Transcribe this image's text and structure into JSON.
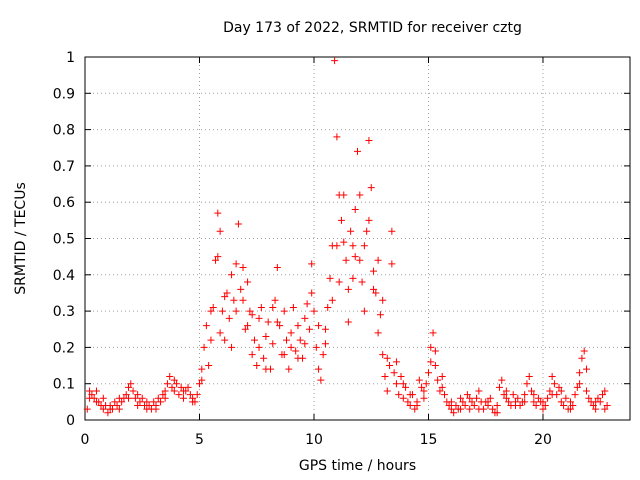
{
  "chart_data": {
    "type": "scatter",
    "title": "Day 173 of 2022, SRMTID for receiver cztg",
    "xlabel": "GPS time / hours",
    "ylabel": "SRMTID / TECUs",
    "xlim": [
      0,
      23.8
    ],
    "ylim": [
      0,
      1
    ],
    "xticks": [
      0,
      5,
      10,
      15,
      20
    ],
    "xtick_labels": [
      "0",
      "5",
      "10",
      "15",
      "20"
    ],
    "yticks": [
      0,
      0.1,
      0.2,
      0.3,
      0.4,
      0.5,
      0.6,
      0.7,
      0.8,
      0.9,
      1
    ],
    "ytick_labels": [
      "0",
      "0.1",
      "0.2",
      "0.3",
      "0.4",
      "0.5",
      "0.6",
      "0.7",
      "0.8",
      "0.9",
      "1"
    ],
    "grid": true,
    "marker": "+",
    "color": "#ff0000",
    "series": [
      {
        "name": "SRMTID",
        "points": [
          [
            0.1,
            0.03
          ],
          [
            0.2,
            0.08
          ],
          [
            0.3,
            0.07
          ],
          [
            0.4,
            0.06
          ],
          [
            0.5,
            0.08
          ],
          [
            0.6,
            0.05
          ],
          [
            0.7,
            0.04
          ],
          [
            0.8,
            0.03
          ],
          [
            0.9,
            0.04
          ],
          [
            1.0,
            0.02
          ],
          [
            1.1,
            0.03
          ],
          [
            1.2,
            0.03
          ],
          [
            1.3,
            0.05
          ],
          [
            1.4,
            0.04
          ],
          [
            1.5,
            0.06
          ],
          [
            1.6,
            0.05
          ],
          [
            1.7,
            0.06
          ],
          [
            1.8,
            0.07
          ],
          [
            1.9,
            0.09
          ],
          [
            2.0,
            0.1
          ],
          [
            2.1,
            0.08
          ],
          [
            2.2,
            0.06
          ],
          [
            2.3,
            0.07
          ],
          [
            2.4,
            0.05
          ],
          [
            2.5,
            0.06
          ],
          [
            2.6,
            0.04
          ],
          [
            2.7,
            0.03
          ],
          [
            2.8,
            0.04
          ],
          [
            2.9,
            0.03
          ],
          [
            3.0,
            0.05
          ],
          [
            3.1,
            0.04
          ],
          [
            3.2,
            0.06
          ],
          [
            3.3,
            0.05
          ],
          [
            3.4,
            0.07
          ],
          [
            3.5,
            0.08
          ],
          [
            3.6,
            0.1
          ],
          [
            3.7,
            0.12
          ],
          [
            3.8,
            0.09
          ],
          [
            3.9,
            0.08
          ],
          [
            4.0,
            0.1
          ],
          [
            4.1,
            0.07
          ],
          [
            4.2,
            0.09
          ],
          [
            4.3,
            0.06
          ],
          [
            4.4,
            0.08
          ],
          [
            4.5,
            0.09
          ],
          [
            4.6,
            0.07
          ],
          [
            4.7,
            0.06
          ],
          [
            4.8,
            0.05
          ],
          [
            4.9,
            0.07
          ],
          [
            5.0,
            0.1
          ],
          [
            5.1,
            0.14
          ],
          [
            5.2,
            0.2
          ],
          [
            5.3,
            0.26
          ],
          [
            5.4,
            0.15
          ],
          [
            5.5,
            0.22
          ],
          [
            5.6,
            0.31
          ],
          [
            5.7,
            0.44
          ],
          [
            5.8,
            0.57
          ],
          [
            5.9,
            0.52
          ],
          [
            6.0,
            0.3
          ],
          [
            6.1,
            0.22
          ],
          [
            6.2,
            0.35
          ],
          [
            6.3,
            0.28
          ],
          [
            6.4,
            0.4
          ],
          [
            6.5,
            0.33
          ],
          [
            6.6,
            0.43
          ],
          [
            6.7,
            0.54
          ],
          [
            6.8,
            0.36
          ],
          [
            6.9,
            0.42
          ],
          [
            7.0,
            0.25
          ],
          [
            7.1,
            0.38
          ],
          [
            7.2,
            0.3
          ],
          [
            7.3,
            0.18
          ],
          [
            7.4,
            0.22
          ],
          [
            7.5,
            0.15
          ],
          [
            7.6,
            0.2
          ],
          [
            7.7,
            0.31
          ],
          [
            7.8,
            0.17
          ],
          [
            7.9,
            0.23
          ],
          [
            8.0,
            0.27
          ],
          [
            8.1,
            0.14
          ],
          [
            8.2,
            0.21
          ],
          [
            8.3,
            0.33
          ],
          [
            8.4,
            0.42
          ],
          [
            8.5,
            0.26
          ],
          [
            8.6,
            0.18
          ],
          [
            8.7,
            0.3
          ],
          [
            8.8,
            0.22
          ],
          [
            8.9,
            0.14
          ],
          [
            9.0,
            0.24
          ],
          [
            9.1,
            0.31
          ],
          [
            9.2,
            0.19
          ],
          [
            9.3,
            0.26
          ],
          [
            9.4,
            0.22
          ],
          [
            9.5,
            0.17
          ],
          [
            9.6,
            0.28
          ],
          [
            9.7,
            0.32
          ],
          [
            9.8,
            0.25
          ],
          [
            9.9,
            0.43
          ],
          [
            10.0,
            0.3
          ],
          [
            10.1,
            0.2
          ],
          [
            10.2,
            0.14
          ],
          [
            10.3,
            0.11
          ],
          [
            10.4,
            0.18
          ],
          [
            10.5,
            0.25
          ],
          [
            10.6,
            0.31
          ],
          [
            10.7,
            0.39
          ],
          [
            10.8,
            0.48
          ],
          [
            10.9,
            0.99
          ],
          [
            11.0,
            0.78
          ],
          [
            11.1,
            0.62
          ],
          [
            11.2,
            0.55
          ],
          [
            11.3,
            0.49
          ],
          [
            11.4,
            0.44
          ],
          [
            11.5,
            0.36
          ],
          [
            11.6,
            0.52
          ],
          [
            11.7,
            0.48
          ],
          [
            11.8,
            0.58
          ],
          [
            11.9,
            0.74
          ],
          [
            12.0,
            0.44
          ],
          [
            12.1,
            0.38
          ],
          [
            12.2,
            0.3
          ],
          [
            12.3,
            0.52
          ],
          [
            12.4,
            0.77
          ],
          [
            12.5,
            0.64
          ],
          [
            12.6,
            0.41
          ],
          [
            12.7,
            0.35
          ],
          [
            12.8,
            0.44
          ],
          [
            12.9,
            0.29
          ],
          [
            13.0,
            0.18
          ],
          [
            13.1,
            0.12
          ],
          [
            13.2,
            0.08
          ],
          [
            13.3,
            0.15
          ],
          [
            13.4,
            0.52
          ],
          [
            13.5,
            0.13
          ],
          [
            13.6,
            0.1
          ],
          [
            13.7,
            0.07
          ],
          [
            13.8,
            0.12
          ],
          [
            13.9,
            0.06
          ],
          [
            14.0,
            0.09
          ],
          [
            14.1,
            0.05
          ],
          [
            14.2,
            0.04
          ],
          [
            14.3,
            0.07
          ],
          [
            14.4,
            0.03
          ],
          [
            14.5,
            0.05
          ],
          [
            14.6,
            0.11
          ],
          [
            14.7,
            0.09
          ],
          [
            14.8,
            0.06
          ],
          [
            14.9,
            0.1
          ],
          [
            15.0,
            0.13
          ],
          [
            15.1,
            0.2
          ],
          [
            15.2,
            0.24
          ],
          [
            15.3,
            0.15
          ],
          [
            15.4,
            0.11
          ],
          [
            15.5,
            0.08
          ],
          [
            15.6,
            0.12
          ],
          [
            15.7,
            0.07
          ],
          [
            15.8,
            0.05
          ],
          [
            15.9,
            0.04
          ],
          [
            16.0,
            0.03
          ],
          [
            16.1,
            0.02
          ],
          [
            16.2,
            0.04
          ],
          [
            16.3,
            0.03
          ],
          [
            16.4,
            0.06
          ],
          [
            16.5,
            0.05
          ],
          [
            16.6,
            0.04
          ],
          [
            16.7,
            0.07
          ],
          [
            16.8,
            0.03
          ],
          [
            16.9,
            0.05
          ],
          [
            17.0,
            0.04
          ],
          [
            17.1,
            0.06
          ],
          [
            17.2,
            0.08
          ],
          [
            17.3,
            0.05
          ],
          [
            17.4,
            0.03
          ],
          [
            17.5,
            0.05
          ],
          [
            17.6,
            0.04
          ],
          [
            17.7,
            0.06
          ],
          [
            17.8,
            0.03
          ],
          [
            17.9,
            0.02
          ],
          [
            18.0,
            0.04
          ],
          [
            18.1,
            0.09
          ],
          [
            18.2,
            0.11
          ],
          [
            18.3,
            0.07
          ],
          [
            18.4,
            0.06
          ],
          [
            18.5,
            0.05
          ],
          [
            18.6,
            0.04
          ],
          [
            18.7,
            0.07
          ],
          [
            18.8,
            0.05
          ],
          [
            18.9,
            0.06
          ],
          [
            19.0,
            0.04
          ],
          [
            19.1,
            0.05
          ],
          [
            19.2,
            0.07
          ],
          [
            19.3,
            0.1
          ],
          [
            19.4,
            0.12
          ],
          [
            19.5,
            0.08
          ],
          [
            19.6,
            0.05
          ],
          [
            19.7,
            0.04
          ],
          [
            19.8,
            0.06
          ],
          [
            19.9,
            0.05
          ],
          [
            20.0,
            0.03
          ],
          [
            20.1,
            0.04
          ],
          [
            20.2,
            0.06
          ],
          [
            20.3,
            0.08
          ],
          [
            20.4,
            0.12
          ],
          [
            20.5,
            0.1
          ],
          [
            20.6,
            0.07
          ],
          [
            20.7,
            0.09
          ],
          [
            20.8,
            0.05
          ],
          [
            20.9,
            0.04
          ],
          [
            21.0,
            0.06
          ],
          [
            21.1,
            0.03
          ],
          [
            21.2,
            0.05
          ],
          [
            21.3,
            0.04
          ],
          [
            21.4,
            0.07
          ],
          [
            21.5,
            0.09
          ],
          [
            21.6,
            0.13
          ],
          [
            21.7,
            0.17
          ],
          [
            21.8,
            0.19
          ],
          [
            21.9,
            0.08
          ],
          [
            22.0,
            0.06
          ],
          [
            22.1,
            0.05
          ],
          [
            22.2,
            0.04
          ],
          [
            22.3,
            0.03
          ],
          [
            22.4,
            0.06
          ],
          [
            22.5,
            0.05
          ],
          [
            22.6,
            0.07
          ],
          [
            22.7,
            0.08
          ],
          [
            22.8,
            0.04
          ],
          [
            0.2,
            0.06
          ],
          [
            0.5,
            0.05
          ],
          [
            0.8,
            0.06
          ],
          [
            1.1,
            0.04
          ],
          [
            1.5,
            0.03
          ],
          [
            1.9,
            0.06
          ],
          [
            2.3,
            0.04
          ],
          [
            2.7,
            0.05
          ],
          [
            3.1,
            0.03
          ],
          [
            3.5,
            0.06
          ],
          [
            3.9,
            0.11
          ],
          [
            4.3,
            0.08
          ],
          [
            4.7,
            0.05
          ],
          [
            5.1,
            0.11
          ],
          [
            5.5,
            0.3
          ],
          [
            5.8,
            0.45
          ],
          [
            5.9,
            0.24
          ],
          [
            6.1,
            0.34
          ],
          [
            6.4,
            0.2
          ],
          [
            6.6,
            0.3
          ],
          [
            6.9,
            0.33
          ],
          [
            7.1,
            0.26
          ],
          [
            7.3,
            0.29
          ],
          [
            7.6,
            0.28
          ],
          [
            7.9,
            0.14
          ],
          [
            8.2,
            0.31
          ],
          [
            8.4,
            0.27
          ],
          [
            8.7,
            0.18
          ],
          [
            9.0,
            0.2
          ],
          [
            9.3,
            0.17
          ],
          [
            9.6,
            0.21
          ],
          [
            9.9,
            0.35
          ],
          [
            10.2,
            0.26
          ],
          [
            10.5,
            0.21
          ],
          [
            10.8,
            0.33
          ],
          [
            11.0,
            0.48
          ],
          [
            11.1,
            0.38
          ],
          [
            11.3,
            0.62
          ],
          [
            11.5,
            0.27
          ],
          [
            11.7,
            0.39
          ],
          [
            11.8,
            0.45
          ],
          [
            12.0,
            0.62
          ],
          [
            12.2,
            0.48
          ],
          [
            12.4,
            0.55
          ],
          [
            12.6,
            0.36
          ],
          [
            12.8,
            0.24
          ],
          [
            13.0,
            0.33
          ],
          [
            13.2,
            0.17
          ],
          [
            13.4,
            0.43
          ],
          [
            13.6,
            0.16
          ],
          [
            13.9,
            0.1
          ],
          [
            14.2,
            0.07
          ],
          [
            14.5,
            0.04
          ],
          [
            14.8,
            0.08
          ],
          [
            15.1,
            0.16
          ],
          [
            15.3,
            0.19
          ],
          [
            15.6,
            0.09
          ],
          [
            16.0,
            0.05
          ],
          [
            16.4,
            0.03
          ],
          [
            16.8,
            0.06
          ],
          [
            17.2,
            0.03
          ],
          [
            17.6,
            0.05
          ],
          [
            18.0,
            0.02
          ],
          [
            18.4,
            0.08
          ],
          [
            18.8,
            0.04
          ],
          [
            19.2,
            0.05
          ],
          [
            19.6,
            0.07
          ],
          [
            20.0,
            0.05
          ],
          [
            20.4,
            0.07
          ],
          [
            20.8,
            0.08
          ],
          [
            21.2,
            0.03
          ],
          [
            21.6,
            0.1
          ],
          [
            21.9,
            0.14
          ],
          [
            22.3,
            0.05
          ],
          [
            22.7,
            0.03
          ]
        ]
      }
    ]
  }
}
